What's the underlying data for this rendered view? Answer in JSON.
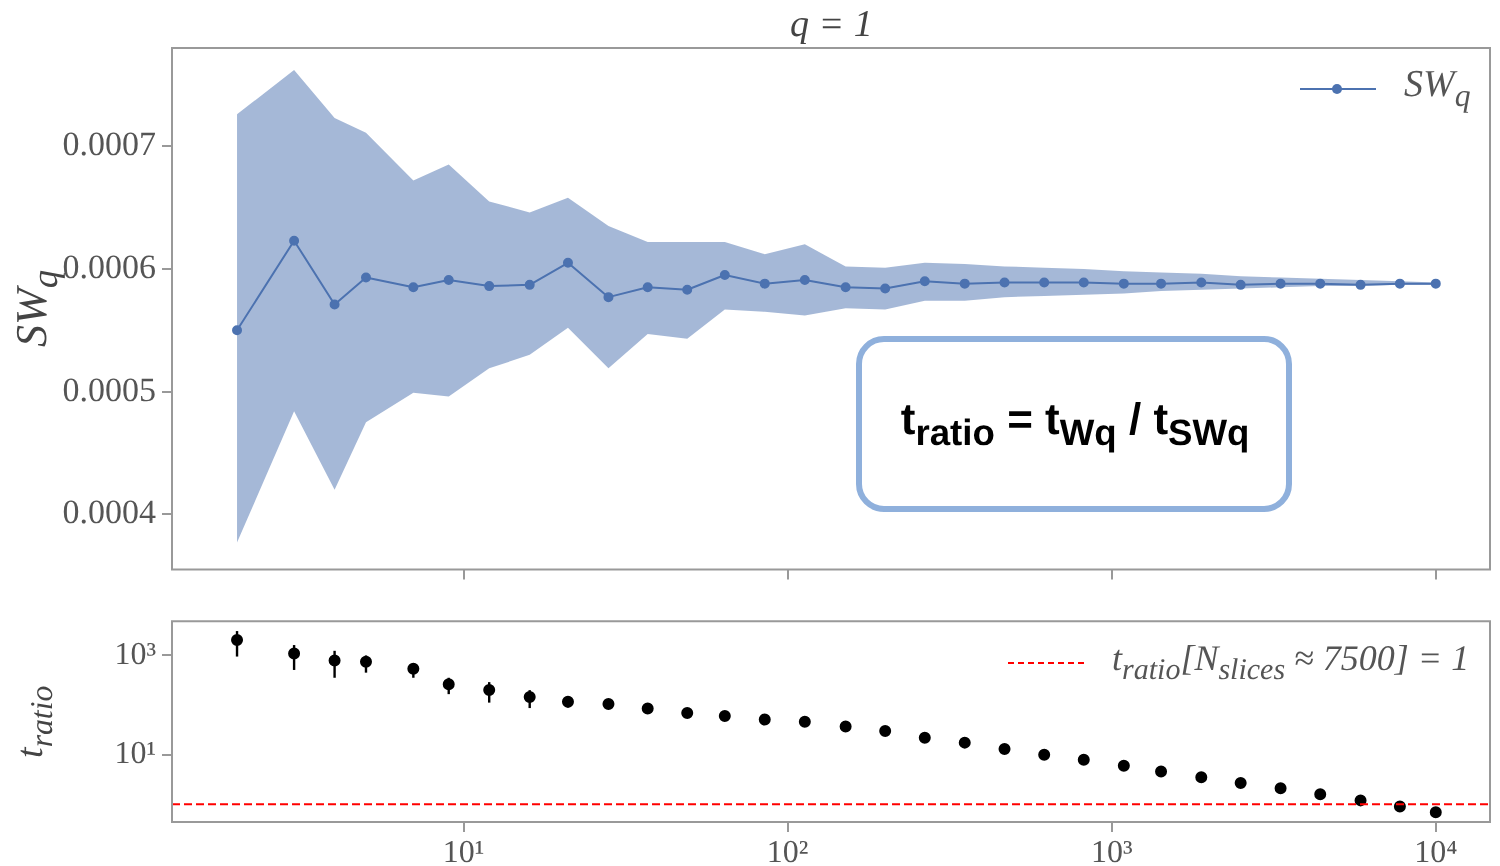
{
  "chart_data": [
    {
      "type": "line",
      "title": "q = 1",
      "ylabel": "SW$_{q}$",
      "x": [
        2,
        3,
        4,
        5,
        7,
        9,
        12,
        16,
        21,
        28,
        37,
        49,
        64,
        85,
        113,
        151,
        200,
        265,
        352,
        467,
        619,
        820,
        1090,
        1420,
        1890,
        2500,
        3320,
        4400,
        5860,
        7750,
        10000
      ],
      "series": [
        {
          "name": "SW$_{q}$",
          "color": "#4c72b0",
          "values": [
            0.00055,
            0.000623,
            0.000571,
            0.000593,
            0.000585,
            0.000591,
            0.000586,
            0.000587,
            0.000605,
            0.000577,
            0.000585,
            0.000583,
            0.000595,
            0.000588,
            0.000591,
            0.000585,
            0.000584,
            0.00059,
            0.000588,
            0.000589,
            0.000589,
            0.000589,
            0.000588,
            0.000588,
            0.000589,
            0.000587,
            0.000588,
            0.000588,
            0.000587,
            0.000588,
            0.000588
          ],
          "lower": [
            0.000377,
            0.000484,
            0.00042,
            0.000475,
            0.000499,
            0.000496,
            0.000519,
            0.00053,
            0.000552,
            0.000519,
            0.000547,
            0.000543,
            0.000567,
            0.000565,
            0.000562,
            0.000568,
            0.000567,
            0.000574,
            0.000574,
            0.000577,
            0.000578,
            0.000579,
            0.00058,
            0.000582,
            0.000583,
            0.000584,
            0.000585,
            0.000586,
            0.000586,
            0.000587,
            0.000587
          ],
          "upper": [
            0.000726,
            0.000762,
            0.000723,
            0.000711,
            0.000672,
            0.000685,
            0.000655,
            0.000646,
            0.000658,
            0.000635,
            0.000622,
            0.000622,
            0.000622,
            0.000612,
            0.00062,
            0.000602,
            0.000601,
            0.000605,
            0.000604,
            0.000602,
            0.000601,
            0.0006,
            0.000598,
            0.000597,
            0.000596,
            0.000594,
            0.000593,
            0.000592,
            0.000591,
            0.00059,
            0.000589
          ]
        }
      ],
      "log": "x",
      "xlim": [
        1.26,
        14700
      ],
      "xticks": [
        10,
        100,
        1000,
        10000
      ],
      "ylim": [
        0.000355,
        0.00078
      ],
      "yticks": [
        0.0004,
        0.0005,
        0.0006,
        0.0007
      ],
      "tick_labels": "y",
      "legend": "top right",
      "marker": "circle",
      "grid": false,
      "annotations": [
        "t$_{ratio}$ = t$_{Wq}$ / t$_{SWq}$"
      ]
    },
    {
      "type": "scatter",
      "ylabel": "t$_{ratio}$",
      "x": [
        2,
        3,
        4,
        5,
        7,
        9,
        12,
        16,
        21,
        28,
        37,
        49,
        64,
        85,
        113,
        151,
        200,
        265,
        352,
        467,
        619,
        820,
        1090,
        1420,
        1890,
        2500,
        3320,
        4400,
        5860,
        7750,
        10000
      ],
      "series": [
        {
          "color": "#000000",
          "values": [
            2040,
            1100,
            790,
            750,
            540,
            263,
            201,
            146,
            117,
            105,
            85,
            69,
            60,
            51,
            46,
            37,
            30,
            22,
            17.5,
            13,
            10,
            7.9,
            6.0,
            4.6,
            3.5,
            2.7,
            2.1,
            1.6,
            1.2,
            0.9,
            0.69
          ],
          "errors": [
            [
              950,
              3100
            ],
            [
              510,
              1620
            ],
            [
              355,
              1240
            ],
            [
              450,
              1000
            ],
            [
              355,
              700
            ],
            [
              166,
              355
            ],
            [
              112,
              290
            ],
            [
              87,
              200
            ],
            [
              89,
              149
            ],
            [
              83,
              125
            ],
            null,
            null,
            null,
            null,
            null,
            null,
            null,
            null,
            null,
            null,
            null,
            null,
            null,
            null,
            null,
            null,
            null,
            null,
            null,
            null,
            null
          ]
        }
      ],
      "log": "xy",
      "xlim": [
        1.26,
        14700
      ],
      "xticks": [
        {
          "value": 10,
          "label": "10¹"
        },
        {
          "value": 100,
          "label": "10²"
        },
        {
          "value": 1000,
          "label": "10³"
        },
        {
          "value": 10000,
          "label": "10⁴"
        }
      ],
      "ylim": [
        0.44,
        4900
      ],
      "yticks": [
        {
          "value": 10,
          "label": "10¹"
        },
        {
          "value": 1000,
          "label": "10³"
        }
      ],
      "ref_lines": [
        {
          "axis": "y",
          "value": 1,
          "label": "t$_{ratio}$[N$_{slices}$ ≈ 7500] = 1",
          "color": "#ff0000",
          "line_style": "dashed"
        }
      ],
      "legend": "top right",
      "marker": "circle",
      "grid": false
    }
  ]
}
